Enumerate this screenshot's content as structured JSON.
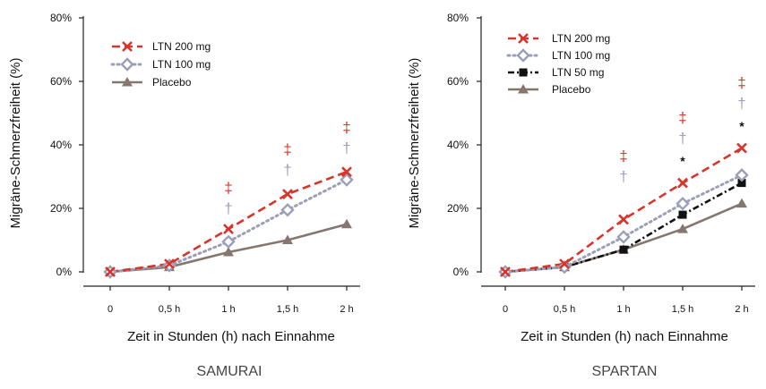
{
  "chart_data": [
    {
      "type": "line",
      "panel_label": "SAMURAI",
      "xlabel": "Zeit in Stunden (h) nach Einnahme",
      "ylabel": "Migräne-Schmerzfreiheit (%)",
      "categories": [
        "0",
        "0,5 h",
        "1 h",
        "1,5 h",
        "2 h"
      ],
      "yticks": [
        "0%",
        "20%",
        "40%",
        "60%",
        "80%"
      ],
      "ylim": [
        0,
        80
      ],
      "legend_position": "top-left",
      "series": [
        {
          "name": "LTN 200 mg",
          "values": [
            0,
            2.5,
            13.5,
            24.5,
            31.5
          ],
          "color": "#d9342b",
          "dash": "9,5",
          "marker": "x"
        },
        {
          "name": "LTN 100 mg",
          "values": [
            0,
            2.0,
            9.5,
            19.5,
            29.0
          ],
          "color": "#9b9fb7",
          "dash": "2,4",
          "marker": "diamond"
        },
        {
          "name": "Placebo",
          "values": [
            0,
            1.5,
            6.2,
            10.0,
            15.0
          ],
          "color": "#857770",
          "dash": "",
          "marker": "triangle"
        }
      ],
      "annotations": [
        {
          "text": "‡",
          "x": 2,
          "y": 25,
          "color": "#d9342b",
          "size": "sig"
        },
        {
          "text": "†",
          "x": 2,
          "y": 18.5,
          "color": "#9b9fb7",
          "size": "sig"
        },
        {
          "text": "‡",
          "x": 3,
          "y": 37,
          "color": "#d9342b",
          "size": "sig"
        },
        {
          "text": "†",
          "x": 3,
          "y": 30.5,
          "color": "#9b9fb7",
          "size": "sig"
        },
        {
          "text": "‡",
          "x": 4,
          "y": 44,
          "color": "#d9342b",
          "size": "sig"
        },
        {
          "text": "†",
          "x": 4,
          "y": 37.5,
          "color": "#9b9fb7",
          "size": "sig"
        }
      ]
    },
    {
      "type": "line",
      "panel_label": "SPARTAN",
      "xlabel": "Zeit in Stunden (h) nach Einnahme",
      "ylabel": "Migräne-Schmerzfreiheit (%)",
      "categories": [
        "0",
        "0,5 h",
        "1 h",
        "1,5 h",
        "2 h"
      ],
      "yticks": [
        "0%",
        "20%",
        "40%",
        "60%",
        "80%"
      ],
      "ylim": [
        0,
        80
      ],
      "legend_position": "top-left",
      "series": [
        {
          "name": "LTN 200 mg",
          "values": [
            0,
            2.5,
            16.5,
            28.0,
            39.0
          ],
          "color": "#d9342b",
          "dash": "9,5",
          "marker": "x"
        },
        {
          "name": "LTN 100 mg",
          "values": [
            0,
            1.5,
            11.0,
            21.5,
            30.5
          ],
          "color": "#9b9fb7",
          "dash": "2,4",
          "marker": "diamond"
        },
        {
          "name": "LTN 50 mg",
          "values": [
            0,
            1.5,
            7.0,
            18.0,
            28.0
          ],
          "color": "#111111",
          "dash": "7,3,2,3",
          "marker": "square"
        },
        {
          "name": "Placebo",
          "values": [
            0,
            1.5,
            7.0,
            13.5,
            21.5
          ],
          "color": "#857770",
          "dash": "",
          "marker": "triangle"
        }
      ],
      "annotations": [
        {
          "text": "‡",
          "x": 2,
          "y": 35,
          "color": "#d9342b",
          "size": "sig"
        },
        {
          "text": "†",
          "x": 2,
          "y": 28.5,
          "color": "#9b9fb7",
          "size": "sig"
        },
        {
          "text": "‡",
          "x": 3,
          "y": 47,
          "color": "#d9342b",
          "size": "sig"
        },
        {
          "text": "†",
          "x": 3,
          "y": 40.5,
          "color": "#9b9fb7",
          "size": "sig"
        },
        {
          "text": "*",
          "x": 3,
          "y": 33.5,
          "color": "#111111",
          "size": "sig-small"
        },
        {
          "text": "‡",
          "x": 4,
          "y": 58,
          "color": "#d9342b",
          "size": "sig"
        },
        {
          "text": "†",
          "x": 4,
          "y": 51.5,
          "color": "#9b9fb7",
          "size": "sig"
        },
        {
          "text": "*",
          "x": 4,
          "y": 44.5,
          "color": "#111111",
          "size": "sig-small"
        }
      ]
    }
  ]
}
